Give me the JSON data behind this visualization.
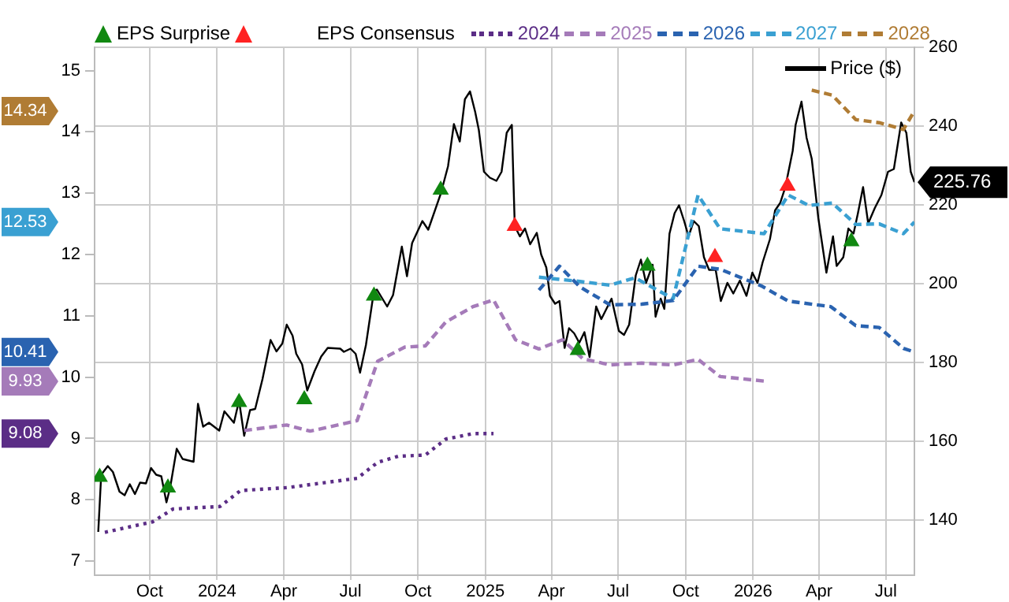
{
  "chart_data": {
    "type": "line",
    "legend": "top",
    "legend_title": "EPS Consensus",
    "grid": true,
    "annotations": [
      "14.34",
      "12.53",
      "10.41",
      "9.93",
      "9.08"
    ],
    "xlim": [
      "2023-07-18",
      "2026-08-09"
    ],
    "xticks": [
      {
        "value": "2023-10",
        "label": "Oct"
      },
      {
        "value": "2024-01",
        "label": "2024"
      },
      {
        "value": "2024-04",
        "label": "Apr"
      },
      {
        "value": "2024-07",
        "label": "Jul"
      },
      {
        "value": "2024-10",
        "label": "Oct"
      },
      {
        "value": "2025-01",
        "label": "2025"
      },
      {
        "value": "2025-04",
        "label": "Apr"
      },
      {
        "value": "2025-07",
        "label": "Jul"
      },
      {
        "value": "2025-10",
        "label": "Oct"
      },
      {
        "value": "2026-01",
        "label": "2026"
      },
      {
        "value": "2026-04",
        "label": "Apr"
      },
      {
        "value": "2026-07",
        "label": "Jul"
      }
    ],
    "ylim": [
      6.77,
      15.38
    ],
    "yticks": [
      7,
      8,
      9,
      10,
      11,
      12,
      13,
      14,
      15
    ],
    "y2lim": [
      126,
      260
    ],
    "y2ticks": [
      140,
      160,
      180,
      200,
      220,
      240,
      260
    ],
    "series": [
      {
        "name": "EPS Surprise",
        "type": "scatter",
        "axis": "y2",
        "marker": "triangle",
        "color": "#118811",
        "x": [
          "2023-07-25",
          "2023-10-26",
          "2024-01-31",
          "2024-04-29",
          "2024-08-02",
          "2024-11-01",
          "2025-05-07",
          "2025-08-10",
          "2026-05-15"
        ],
        "values": [
          150.9,
          148.2,
          169.9,
          170.6,
          196.9,
          223.8,
          183.1,
          204.5,
          210.7
        ]
      },
      {
        "type": "scatter",
        "axis": "y2",
        "marker": "triangle",
        "color": "#ff2222",
        "x": [
          "2025-02-10",
          "2025-11-10",
          "2026-02-17"
        ],
        "values": [
          214.6,
          206.7,
          224.8
        ]
      },
      {
        "name": "2024",
        "type": "line",
        "line_style": "dotted",
        "color": "#5b2d86",
        "x": [
          "2023-08-01",
          "2023-10-05",
          "2023-11-02",
          "2024-01-05",
          "2024-02-02",
          "2024-04-07",
          "2024-07-10",
          "2024-08-07",
          "2024-09-04",
          "2024-10-11",
          "2024-11-08",
          "2024-12-15",
          "2025-01-12"
        ],
        "values": [
          7.47,
          7.64,
          7.85,
          7.89,
          8.15,
          8.2,
          8.35,
          8.61,
          8.71,
          8.73,
          8.99,
          9.08,
          9.08
        ]
      },
      {
        "name": "2025",
        "type": "line",
        "line_style": "dashed",
        "color": "#a57bb9",
        "x": [
          "2024-02-07",
          "2024-04-05",
          "2024-05-07",
          "2024-07-10",
          "2024-08-07",
          "2024-09-13",
          "2024-10-11",
          "2024-11-08",
          "2024-12-15",
          "2025-01-12",
          "2025-02-11",
          "2025-03-15",
          "2025-04-16",
          "2025-05-14",
          "2025-06-20",
          "2025-08-02",
          "2025-09-14",
          "2025-10-18",
          "2025-11-17",
          "2026-01-21"
        ],
        "values": [
          9.13,
          9.22,
          9.12,
          9.29,
          10.26,
          10.49,
          10.51,
          10.9,
          11.15,
          11.26,
          10.61,
          10.46,
          10.61,
          10.3,
          10.2,
          10.23,
          10.2,
          10.29,
          10.01,
          9.93
        ]
      },
      {
        "name": "2026",
        "type": "line",
        "line_style": "dashed",
        "color": "#2a63b0",
        "x": [
          "2025-03-15",
          "2025-04-12",
          "2025-05-10",
          "2025-06-20",
          "2025-08-02",
          "2025-09-14",
          "2025-10-18",
          "2025-11-17",
          "2026-01-12",
          "2026-02-18",
          "2026-04-17",
          "2026-05-21",
          "2026-06-22",
          "2026-07-25",
          "2026-08-09"
        ],
        "values": [
          11.42,
          11.81,
          11.47,
          11.18,
          11.19,
          11.25,
          11.81,
          11.76,
          11.49,
          11.24,
          11.15,
          10.84,
          10.81,
          10.47,
          10.41
        ]
      },
      {
        "name": "2027",
        "type": "line",
        "line_style": "dashed",
        "color": "#3aa0d2",
        "x": [
          "2025-03-15",
          "2025-05-10",
          "2025-06-20",
          "2025-07-24",
          "2025-09-14",
          "2025-10-18",
          "2025-11-17",
          "2026-01-16",
          "2026-02-18",
          "2026-03-18",
          "2026-04-19",
          "2026-05-21",
          "2026-06-22",
          "2026-07-25",
          "2026-08-09"
        ],
        "values": [
          11.63,
          11.56,
          11.5,
          11.62,
          11.28,
          12.97,
          12.42,
          12.34,
          12.97,
          12.8,
          12.84,
          12.49,
          12.5,
          12.34,
          12.53
        ]
      },
      {
        "name": "2028",
        "type": "line",
        "line_style": "dashed",
        "color": "#b07c34",
        "x": [
          "2026-03-22",
          "2026-04-19",
          "2026-05-21",
          "2026-06-22",
          "2026-07-25",
          "2026-08-09"
        ],
        "values": [
          14.68,
          14.6,
          14.2,
          14.15,
          14.04,
          14.34
        ]
      },
      {
        "name": "Price ($)",
        "type": "line",
        "axis": "y2",
        "line_style": "solid",
        "color": "#000000",
        "x": [
          "2023-07-23",
          "2023-07-27",
          "2023-08-05",
          "2023-08-12",
          "2023-08-21",
          "2023-08-28",
          "2023-09-04",
          "2023-09-11",
          "2023-09-18",
          "2023-09-26",
          "2023-10-03",
          "2023-10-10",
          "2023-10-17",
          "2023-10-24",
          "2023-10-29",
          "2023-11-07",
          "2023-11-15",
          "2023-11-30",
          "2023-12-06",
          "2023-12-13",
          "2023-12-21",
          "2024-01-04",
          "2024-01-11",
          "2024-01-24",
          "2024-01-31",
          "2024-02-07",
          "2024-02-15",
          "2024-02-22",
          "2024-03-03",
          "2024-03-14",
          "2024-03-22",
          "2024-03-30",
          "2024-04-05",
          "2024-04-13",
          "2024-04-18",
          "2024-04-26",
          "2024-05-03",
          "2024-05-13",
          "2024-05-22",
          "2024-05-31",
          "2024-06-17",
          "2024-06-22",
          "2024-07-01",
          "2024-07-08",
          "2024-07-14",
          "2024-07-22",
          "2024-08-02",
          "2024-08-06",
          "2024-08-20",
          "2024-08-28",
          "2024-09-09",
          "2024-09-16",
          "2024-09-23",
          "2024-10-07",
          "2024-10-15",
          "2024-11-01",
          "2024-11-11",
          "2024-11-19",
          "2024-11-27",
          "2024-12-04",
          "2024-12-11",
          "2024-12-18",
          "2024-12-23",
          "2024-12-30",
          "2025-01-07",
          "2025-01-16",
          "2025-01-23",
          "2025-01-30",
          "2025-02-06",
          "2025-02-10",
          "2025-02-17",
          "2025-02-24",
          "2025-03-03",
          "2025-03-12",
          "2025-03-18",
          "2025-03-25",
          "2025-03-30",
          "2025-04-06",
          "2025-04-12",
          "2025-04-19",
          "2025-04-25",
          "2025-05-02",
          "2025-05-09",
          "2025-05-16",
          "2025-05-23",
          "2025-06-01",
          "2025-06-08",
          "2025-06-22",
          "2025-07-02",
          "2025-07-09",
          "2025-07-16",
          "2025-07-25",
          "2025-08-01",
          "2025-08-08",
          "2025-08-17",
          "2025-08-21",
          "2025-08-28",
          "2025-09-02",
          "2025-09-09",
          "2025-09-16",
          "2025-09-22",
          "2025-09-29",
          "2025-10-05",
          "2025-10-12",
          "2025-10-19",
          "2025-10-26",
          "2025-11-02",
          "2025-11-11",
          "2025-11-18",
          "2025-11-27",
          "2025-12-05",
          "2025-12-14",
          "2025-12-23",
          "2025-12-31",
          "2026-01-07",
          "2026-01-14",
          "2026-01-24",
          "2026-01-31",
          "2026-02-07",
          "2026-02-14",
          "2026-02-24",
          "2026-02-28",
          "2026-03-08",
          "2026-03-15",
          "2026-03-22",
          "2026-03-31",
          "2026-04-11",
          "2026-04-20",
          "2026-04-25",
          "2026-05-04",
          "2026-05-11",
          "2026-05-18",
          "2026-05-24",
          "2026-05-31",
          "2026-06-07",
          "2026-06-16",
          "2026-06-25",
          "2026-07-04",
          "2026-07-12",
          "2026-07-22",
          "2026-07-29",
          "2026-08-04",
          "2026-08-09"
        ],
        "values": [
          137,
          151.5,
          153.7,
          152.2,
          147.2,
          146.3,
          149.1,
          146.6,
          149.5,
          149.3,
          153.2,
          151.5,
          151.1,
          144.5,
          148.2,
          158.1,
          155.5,
          154.8,
          169.5,
          163.7,
          164.7,
          162.7,
          167.6,
          164.7,
          170.3,
          161.4,
          167.9,
          168.2,
          175.8,
          185.7,
          182.8,
          184.8,
          189.6,
          186.8,
          182.2,
          179.5,
          172.9,
          177.8,
          181.5,
          183.7,
          183.5,
          182.7,
          183.5,
          182.2,
          177.4,
          184.4,
          198.2,
          198.5,
          194.2,
          197.1,
          209.4,
          201.9,
          210.3,
          215.9,
          213.7,
          222.8,
          229.8,
          240.5,
          236.1,
          246.8,
          248.8,
          243.6,
          239,
          228.4,
          226.9,
          226.1,
          228.4,
          238.3,
          240.3,
          214.6,
          212,
          214,
          210,
          212.9,
          207.4,
          204.1,
          196.9,
          194.9,
          195.6,
          183.7,
          188.7,
          187.4,
          185,
          187.7,
          181.4,
          194.2,
          191,
          196.2,
          188,
          187,
          189.6,
          202.1,
          206.1,
          200.2,
          204.8,
          191.6,
          196.2,
          193.6,
          212.7,
          217.9,
          219.9,
          215.9,
          212,
          215.9,
          214.6,
          206.7,
          203.5,
          203.5,
          195.6,
          200.2,
          197.5,
          200.8,
          196.9,
          202.8,
          200.2,
          205.4,
          211.3,
          218.6,
          220.5,
          224.5,
          233.7,
          240.3,
          246.2,
          237,
          231.7,
          216.6,
          202.8,
          212,
          204.5,
          206.7,
          214,
          212.7,
          217.9,
          224.5,
          215.3,
          219.2,
          222.5,
          228.4,
          229.1,
          240.9,
          238.3,
          228.4,
          225.76
        ],
        "value_labels": [
          null,
          null,
          null,
          null,
          null,
          null,
          null,
          null,
          null,
          null,
          null,
          null,
          null,
          null,
          null,
          null,
          null,
          null,
          null,
          null,
          null,
          null,
          null,
          null,
          null,
          null,
          null,
          null,
          null,
          null,
          null,
          null,
          null,
          null,
          null,
          null,
          null,
          null,
          null,
          null,
          null,
          null,
          null,
          null,
          null,
          null,
          null,
          null,
          null,
          null,
          null,
          null,
          null,
          null,
          null,
          null,
          null,
          null,
          null,
          null,
          null,
          null,
          null,
          null,
          null,
          null,
          null,
          null,
          null,
          null,
          null,
          null,
          null,
          null,
          null,
          null,
          null,
          null,
          null,
          null,
          null,
          null,
          null,
          null,
          null,
          null,
          null,
          null,
          null,
          null,
          null,
          null,
          null,
          null,
          null,
          null,
          null,
          null,
          null,
          null,
          null,
          null,
          null,
          null,
          null,
          null,
          null,
          null,
          null,
          null,
          null,
          null,
          null,
          null,
          null,
          null,
          null,
          null,
          null,
          null,
          null,
          null,
          null,
          null,
          null,
          null,
          null,
          null,
          null,
          null,
          null,
          null,
          null,
          null,
          null,
          null,
          null,
          null,
          null,
          null,
          null,
          null,
          "225.76"
        ]
      }
    ]
  }
}
